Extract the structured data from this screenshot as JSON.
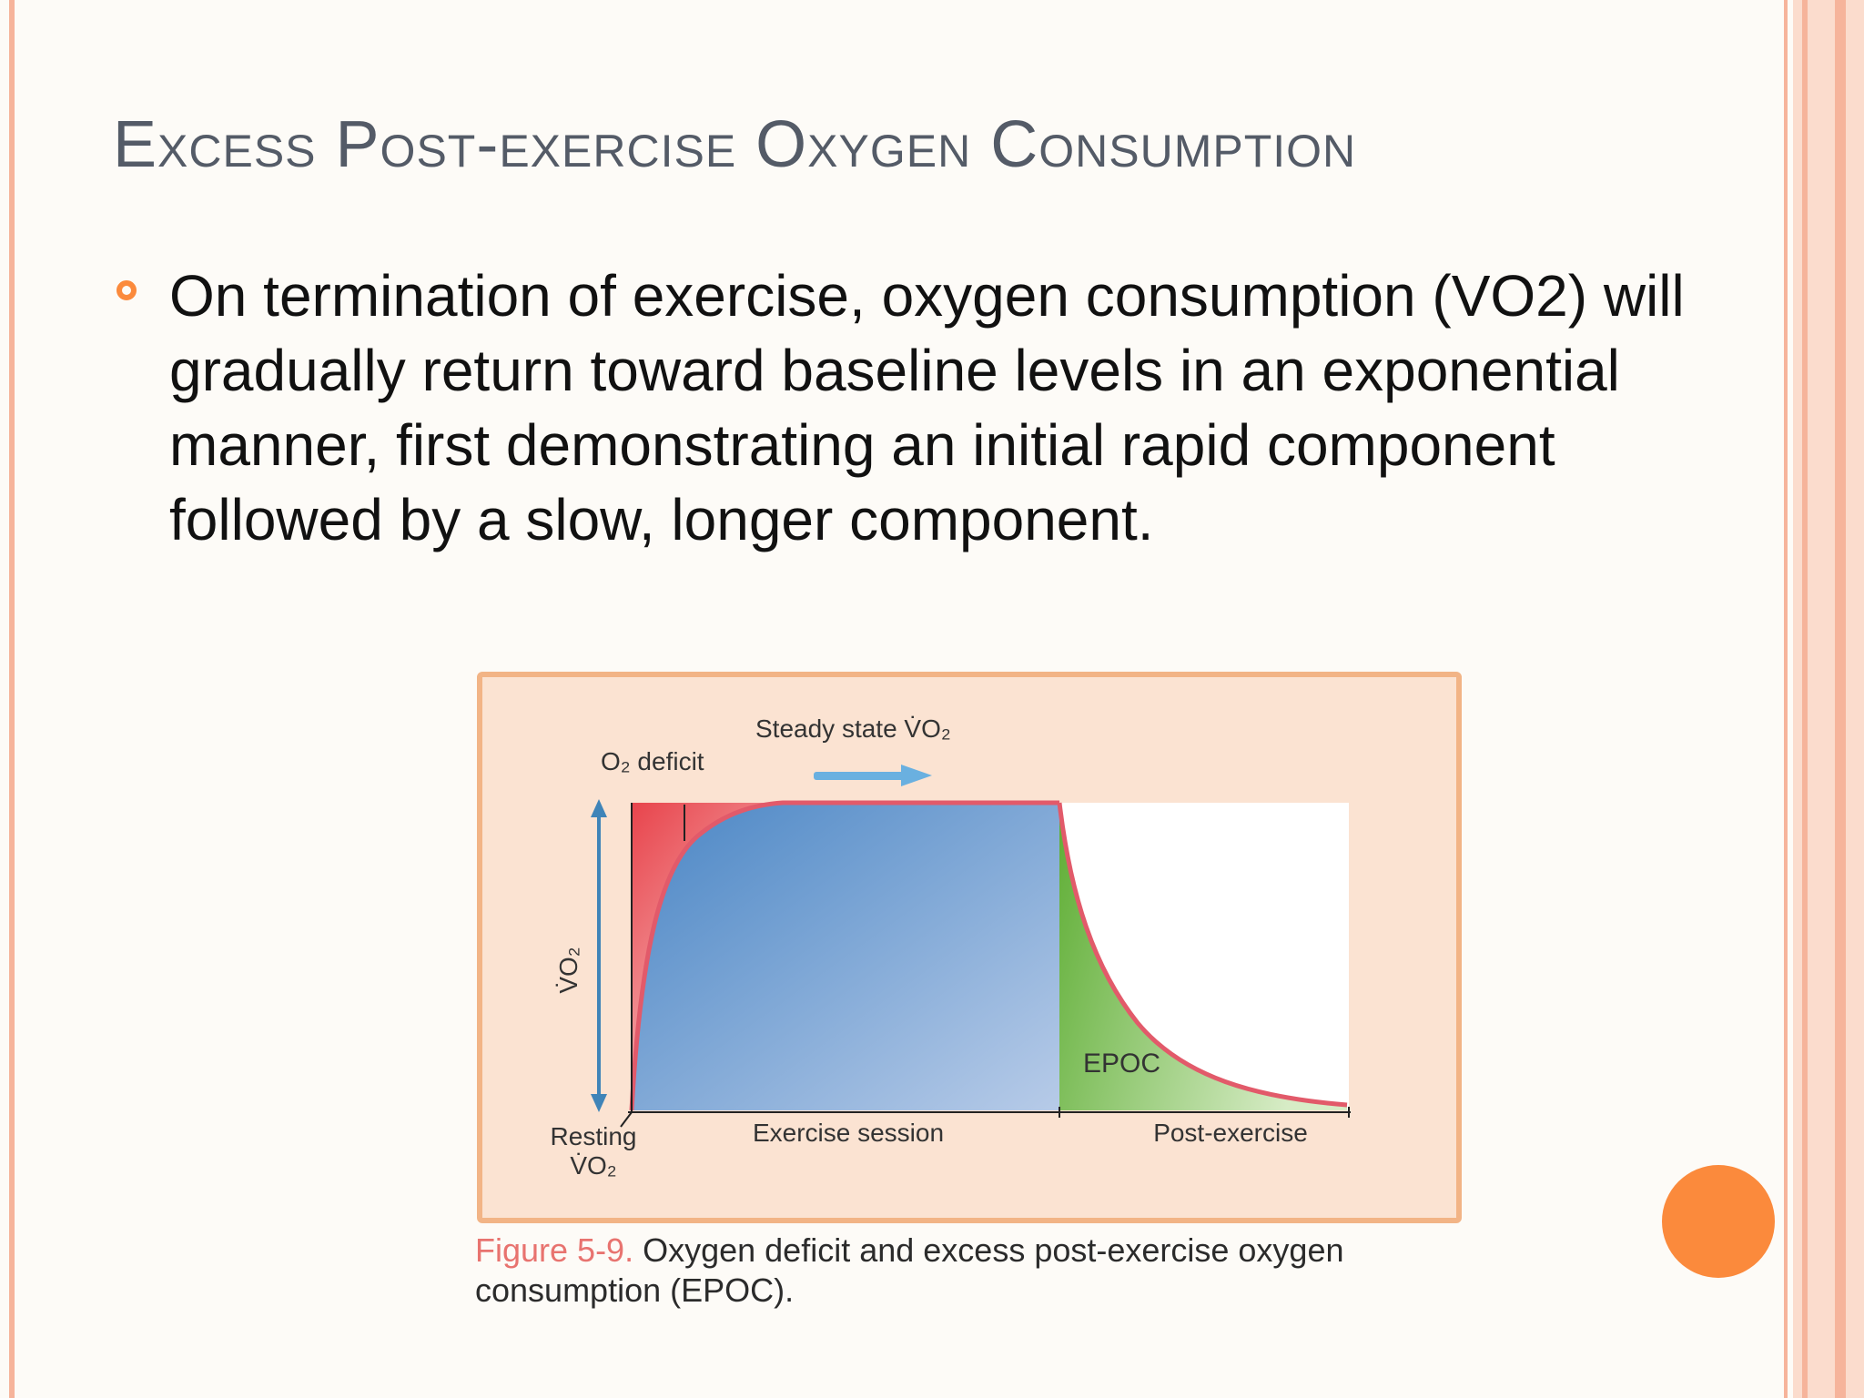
{
  "slide": {
    "title": "Excess Post-exercise Oxygen Consumption",
    "bullet": "On termination of exercise, oxygen consumption (VO2) will gradually return toward baseline levels in an exponential manner, first demonstrating an initial rapid component followed by a slow, longer component."
  },
  "figure": {
    "labels": {
      "steady_state": "Steady state V̇O₂",
      "o2_deficit": "O₂ deficit",
      "y_axis": "V̇O₂",
      "epoc": "EPOC",
      "resting_line1": "Resting",
      "resting_line2": "V̇O₂",
      "exercise_session": "Exercise session",
      "post_exercise": "Post-exercise"
    },
    "caption_number": "Figure 5-9.",
    "caption_text": "Oxygen deficit and excess post-exercise oxygen consumption (EPOC)."
  },
  "colors": {
    "accent": "#fb8a3c",
    "border": "#f6b49b",
    "deficit": "#e8444c",
    "steady": "#4a86c5",
    "epoc": "#6cb43c"
  }
}
